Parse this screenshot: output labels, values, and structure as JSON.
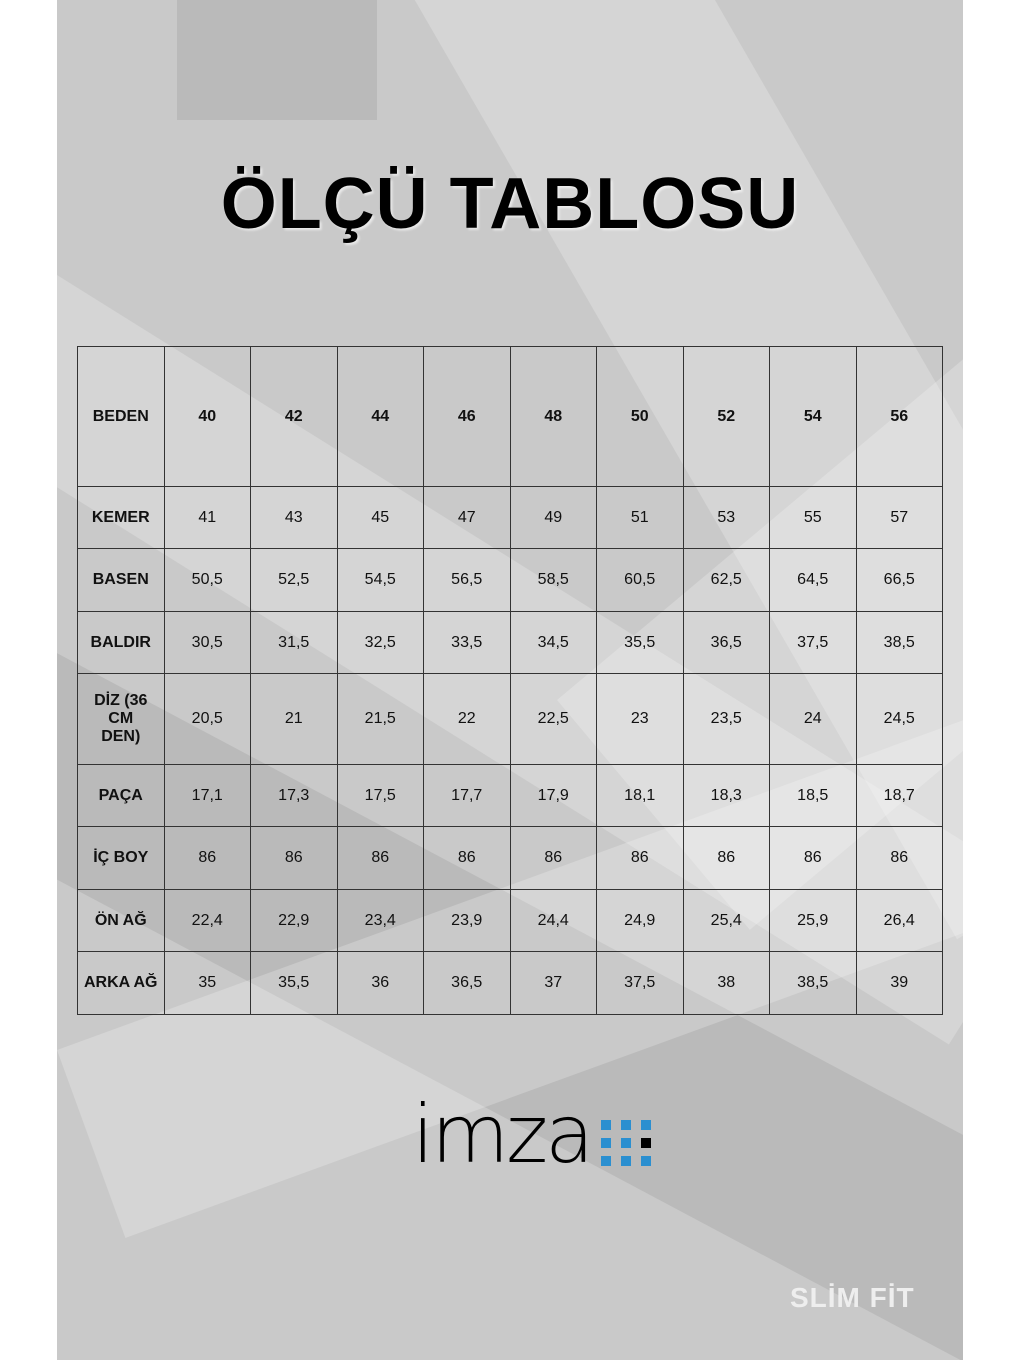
{
  "title": "ÖLÇÜ TABLOSU",
  "table": {
    "header": [
      "BEDEN",
      "40",
      "42",
      "44",
      "46",
      "48",
      "50",
      "52",
      "54",
      "56"
    ],
    "rows": [
      [
        "KEMER",
        "41",
        "43",
        "45",
        "47",
        "49",
        "51",
        "53",
        "55",
        "57"
      ],
      [
        "BASEN",
        "50,5",
        "52,5",
        "54,5",
        "56,5",
        "58,5",
        "60,5",
        "62,5",
        "64,5",
        "66,5"
      ],
      [
        "BALDIR",
        "30,5",
        "31,5",
        "32,5",
        "33,5",
        "34,5",
        "35,5",
        "36,5",
        "37,5",
        "38,5"
      ],
      [
        "DİZ (36 CM DEN)",
        "20,5",
        "21",
        "21,5",
        "22",
        "22,5",
        "23",
        "23,5",
        "24",
        "24,5"
      ],
      [
        "PAÇA",
        "17,1",
        "17,3",
        "17,5",
        "17,7",
        "17,9",
        "18,1",
        "18,3",
        "18,5",
        "18,7"
      ],
      [
        "İÇ BOY",
        "86",
        "86",
        "86",
        "86",
        "86",
        "86",
        "86",
        "86",
        "86"
      ],
      [
        "ÖN AĞ",
        "22,4",
        "22,9",
        "23,4",
        "23,9",
        "24,4",
        "24,9",
        "25,4",
        "25,9",
        "26,4"
      ],
      [
        "ARKA AĞ",
        "35",
        "35,5",
        "36",
        "36,5",
        "37",
        "37,5",
        "38",
        "38,5",
        "39"
      ]
    ]
  },
  "logo": {
    "text": "imza",
    "accent": "#2b8fd0"
  },
  "fit_label": "SLİM FİT"
}
